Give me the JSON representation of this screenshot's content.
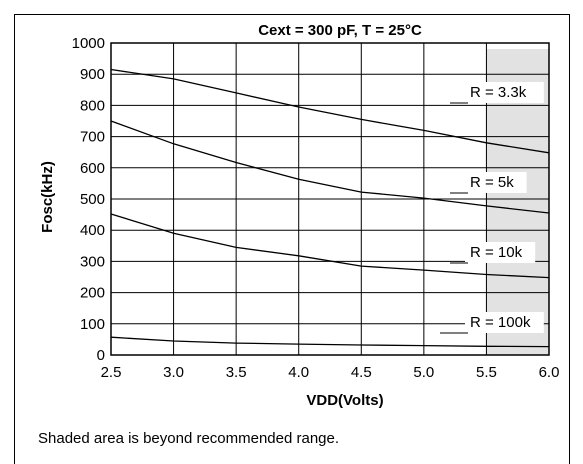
{
  "chart_data": {
    "type": "line",
    "title": "Cext = 300 pF, T = 25°C",
    "xlabel": "VDD(Volts)",
    "ylabel": "Fosc(kHz)",
    "xlim": [
      2.5,
      6.0
    ],
    "ylim": [
      0,
      1000
    ],
    "x_ticks": [
      "2.5",
      "3.0",
      "3.5",
      "4.0",
      "4.5",
      "5.0",
      "5.5",
      "6.0"
    ],
    "y_ticks": [
      "0",
      "100",
      "200",
      "300",
      "400",
      "500",
      "600",
      "700",
      "800",
      "900",
      "1000"
    ],
    "grid": true,
    "shaded_region": {
      "x_from": 5.5,
      "x_to": 6.0,
      "color": "#e2e2e2"
    },
    "series": [
      {
        "name": "R = 3.3k",
        "x": [
          2.5,
          3.0,
          3.5,
          4.0,
          4.5,
          5.0,
          5.5,
          6.0
        ],
        "y": [
          915,
          885,
          840,
          795,
          755,
          720,
          680,
          648
        ]
      },
      {
        "name": "R = 5k",
        "x": [
          2.5,
          3.0,
          3.5,
          4.0,
          4.5,
          5.0,
          5.5,
          6.0
        ],
        "y": [
          750,
          677,
          617,
          563,
          522,
          503,
          478,
          455
        ]
      },
      {
        "name": "R = 10k",
        "x": [
          2.5,
          3.0,
          3.5,
          4.0,
          4.5,
          5.0,
          5.5,
          6.0
        ],
        "y": [
          452,
          390,
          345,
          318,
          285,
          272,
          258,
          248
        ]
      },
      {
        "name": "R = 100k",
        "x": [
          2.5,
          3.0,
          3.5,
          4.0,
          4.5,
          5.0,
          5.5,
          6.0
        ],
        "y": [
          57,
          45,
          38,
          35,
          32,
          30,
          28,
          27
        ]
      }
    ]
  },
  "footnote": "Shaded area is beyond recommended range."
}
